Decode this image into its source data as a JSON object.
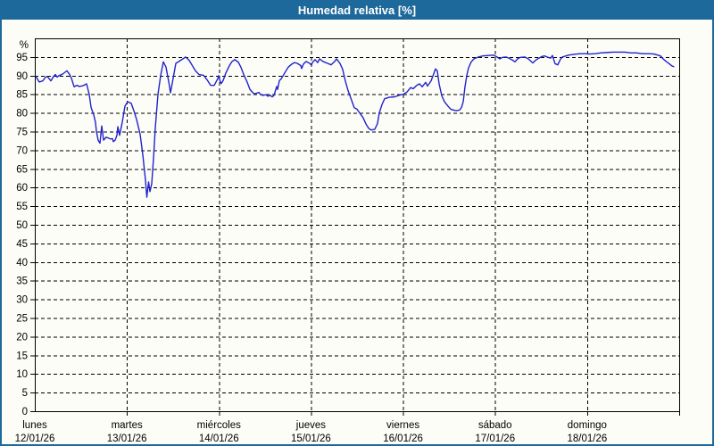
{
  "window": {
    "title": "Humedad relativa [%]"
  },
  "colors": {
    "title_bar_bg": "#1e699b",
    "window_border": "#1e699b",
    "content_bg": "#fcfdf7",
    "line": "#2222cc",
    "grid": "#000000",
    "text": "#000000"
  },
  "chart_data": {
    "type": "line",
    "title": "Humedad relativa [%]",
    "ylabel": "%",
    "ylim": [
      0,
      100
    ],
    "ytick_step": 5,
    "ytick_values": [
      0,
      5,
      10,
      15,
      20,
      25,
      30,
      35,
      40,
      45,
      50,
      55,
      60,
      65,
      70,
      75,
      80,
      85,
      90,
      95
    ],
    "grid": "dashed",
    "legend": "none",
    "x_axis": {
      "unit": "days",
      "range": [
        0,
        7
      ],
      "days": [
        {
          "label": "lunes",
          "date": "12/01/26"
        },
        {
          "label": "martes",
          "date": "13/01/26"
        },
        {
          "label": "miércoles",
          "date": "14/01/26"
        },
        {
          "label": "jueves",
          "date": "15/01/26"
        },
        {
          "label": "viernes",
          "date": "16/01/26"
        },
        {
          "label": "sábado",
          "date": "17/01/26"
        },
        {
          "label": "domingo",
          "date": "18/01/26"
        }
      ]
    },
    "series": [
      {
        "name": "Humedad relativa",
        "color": "#2222cc",
        "points": [
          [
            0.01,
            89.8
          ],
          [
            0.048,
            88.3
          ],
          [
            0.087,
            88.6
          ],
          [
            0.116,
            89.6
          ],
          [
            0.136,
            89.8
          ],
          [
            0.175,
            88.6
          ],
          [
            0.204,
            89.8
          ],
          [
            0.223,
            90.3
          ],
          [
            0.242,
            89.6
          ],
          [
            0.262,
            90.0
          ],
          [
            0.301,
            90.4
          ],
          [
            0.349,
            91.3
          ],
          [
            0.378,
            90.3
          ],
          [
            0.398,
            89.3
          ],
          [
            0.427,
            87.0
          ],
          [
            0.456,
            87.4
          ],
          [
            0.485,
            87.1
          ],
          [
            0.524,
            87.3
          ],
          [
            0.562,
            87.8
          ],
          [
            0.591,
            85.0
          ],
          [
            0.611,
            81.5
          ],
          [
            0.64,
            79.5
          ],
          [
            0.659,
            77.5
          ],
          [
            0.669,
            75.1
          ],
          [
            0.688,
            72.7
          ],
          [
            0.708,
            71.9
          ],
          [
            0.727,
            76.5
          ],
          [
            0.747,
            72.7
          ],
          [
            0.776,
            73.5
          ],
          [
            0.805,
            73.2
          ],
          [
            0.824,
            73.0
          ],
          [
            0.844,
            73.1
          ],
          [
            0.853,
            72.3
          ],
          [
            0.873,
            72.7
          ],
          [
            0.892,
            74.0
          ],
          [
            0.902,
            76.3
          ],
          [
            0.921,
            74.0
          ],
          [
            0.95,
            77.5
          ],
          [
            0.979,
            81.8
          ],
          [
            1.008,
            83.0
          ],
          [
            1.047,
            82.6
          ],
          [
            1.076,
            80.6
          ],
          [
            1.105,
            78.3
          ],
          [
            1.144,
            74.3
          ],
          [
            1.173,
            68.8
          ],
          [
            1.202,
            62.0
          ],
          [
            1.217,
            57.4
          ],
          [
            1.236,
            61.5
          ],
          [
            1.251,
            58.9
          ],
          [
            1.27,
            61.0
          ],
          [
            1.29,
            68.0
          ],
          [
            1.309,
            76.0
          ],
          [
            1.338,
            85.0
          ],
          [
            1.367,
            90.0
          ],
          [
            1.396,
            93.7
          ],
          [
            1.425,
            92.3
          ],
          [
            1.454,
            88.5
          ],
          [
            1.474,
            85.4
          ],
          [
            1.503,
            89.3
          ],
          [
            1.532,
            93.3
          ],
          [
            1.571,
            93.9
          ],
          [
            1.609,
            94.5
          ],
          [
            1.638,
            95.0
          ],
          [
            1.677,
            94.1
          ],
          [
            1.706,
            92.9
          ],
          [
            1.745,
            91.3
          ],
          [
            1.784,
            90.3
          ],
          [
            1.833,
            90.1
          ],
          [
            1.871,
            88.9
          ],
          [
            1.91,
            87.4
          ],
          [
            1.949,
            87.4
          ],
          [
            1.988,
            89.2
          ],
          [
            1.997,
            90.0
          ],
          [
            2.017,
            88.2
          ],
          [
            2.026,
            87.9
          ],
          [
            2.046,
            88.7
          ],
          [
            2.075,
            90.7
          ],
          [
            2.114,
            92.7
          ],
          [
            2.143,
            93.8
          ],
          [
            2.172,
            94.3
          ],
          [
            2.211,
            93.6
          ],
          [
            2.24,
            92.2
          ],
          [
            2.269,
            90.3
          ],
          [
            2.308,
            88.2
          ],
          [
            2.337,
            86.3
          ],
          [
            2.366,
            85.5
          ],
          [
            2.385,
            85.1
          ],
          [
            2.434,
            85.5
          ],
          [
            2.453,
            84.9
          ],
          [
            2.482,
            84.7
          ],
          [
            2.511,
            84.9
          ],
          [
            2.531,
            84.5
          ],
          [
            2.56,
            84.7
          ],
          [
            2.579,
            84.3
          ],
          [
            2.598,
            84.7
          ],
          [
            2.608,
            85.5
          ],
          [
            2.628,
            87.1
          ],
          [
            2.637,
            86.3
          ],
          [
            2.657,
            88.7
          ],
          [
            2.676,
            89.1
          ],
          [
            2.695,
            89.9
          ],
          [
            2.724,
            91.1
          ],
          [
            2.754,
            92.3
          ],
          [
            2.792,
            93.1
          ],
          [
            2.822,
            93.5
          ],
          [
            2.851,
            93.3
          ],
          [
            2.889,
            92.7
          ],
          [
            2.899,
            91.9
          ],
          [
            2.918,
            93.1
          ],
          [
            2.947,
            93.8
          ],
          [
            2.986,
            93.3
          ],
          [
            3.006,
            92.8
          ],
          [
            3.015,
            93.5
          ],
          [
            3.044,
            94.3
          ],
          [
            3.073,
            93.5
          ],
          [
            3.093,
            94.5
          ],
          [
            3.131,
            93.8
          ],
          [
            3.18,
            93.3
          ],
          [
            3.219,
            92.9
          ],
          [
            3.257,
            93.8
          ],
          [
            3.277,
            94.5
          ],
          [
            3.315,
            93.3
          ],
          [
            3.344,
            91.7
          ],
          [
            3.373,
            88.6
          ],
          [
            3.403,
            86.0
          ],
          [
            3.441,
            83.4
          ],
          [
            3.47,
            81.4
          ],
          [
            3.5,
            81.0
          ],
          [
            3.529,
            80.0
          ],
          [
            3.567,
            78.7
          ],
          [
            3.596,
            77.1
          ],
          [
            3.626,
            75.9
          ],
          [
            3.655,
            75.4
          ],
          [
            3.693,
            75.6
          ],
          [
            3.722,
            77.1
          ],
          [
            3.742,
            80.0
          ],
          [
            3.771,
            82.2
          ],
          [
            3.8,
            83.8
          ],
          [
            3.849,
            84.2
          ],
          [
            3.907,
            84.3
          ],
          [
            3.965,
            84.8
          ],
          [
            4.004,
            85.0
          ],
          [
            4.043,
            85.6
          ],
          [
            4.082,
            86.8
          ],
          [
            4.111,
            86.5
          ],
          [
            4.15,
            87.4
          ],
          [
            4.179,
            87.8
          ],
          [
            4.208,
            87.0
          ],
          [
            4.246,
            88.2
          ],
          [
            4.266,
            87.2
          ],
          [
            4.305,
            88.6
          ],
          [
            4.353,
            91.8
          ],
          [
            4.372,
            91.3
          ],
          [
            4.392,
            87.8
          ],
          [
            4.421,
            84.6
          ],
          [
            4.45,
            83.0
          ],
          [
            4.489,
            81.8
          ],
          [
            4.518,
            81.0
          ],
          [
            4.557,
            80.7
          ],
          [
            4.586,
            80.6
          ],
          [
            4.615,
            80.8
          ],
          [
            4.634,
            81.4
          ],
          [
            4.654,
            83.0
          ],
          [
            4.673,
            87.0
          ],
          [
            4.693,
            90.1
          ],
          [
            4.712,
            92.1
          ],
          [
            4.741,
            93.7
          ],
          [
            4.77,
            94.5
          ],
          [
            4.819,
            95.0
          ],
          [
            4.867,
            95.3
          ],
          [
            4.925,
            95.4
          ],
          [
            4.983,
            95.5
          ],
          [
            5.022,
            95.0
          ],
          [
            5.051,
            94.5
          ],
          [
            5.08,
            94.9
          ],
          [
            5.119,
            95.0
          ],
          [
            5.148,
            94.7
          ],
          [
            5.187,
            94.2
          ],
          [
            5.216,
            93.7
          ],
          [
            5.245,
            94.5
          ],
          [
            5.274,
            94.9
          ],
          [
            5.323,
            95.0
          ],
          [
            5.361,
            94.5
          ],
          [
            5.41,
            93.4
          ],
          [
            5.439,
            94.1
          ],
          [
            5.468,
            94.6
          ],
          [
            5.507,
            95.1
          ],
          [
            5.536,
            95.3
          ],
          [
            5.565,
            95.0
          ],
          [
            5.604,
            94.7
          ],
          [
            5.623,
            95.4
          ],
          [
            5.652,
            93.2
          ],
          [
            5.681,
            92.9
          ],
          [
            5.71,
            94.4
          ],
          [
            5.73,
            95.0
          ],
          [
            5.797,
            95.5
          ],
          [
            5.856,
            95.7
          ],
          [
            5.923,
            95.9
          ],
          [
            5.991,
            95.9
          ],
          [
            6.02,
            95.8
          ],
          [
            6.088,
            95.9
          ],
          [
            6.146,
            96.1
          ],
          [
            6.214,
            96.2
          ],
          [
            6.282,
            96.3
          ],
          [
            6.34,
            96.3
          ],
          [
            6.408,
            96.3
          ],
          [
            6.476,
            96.1
          ],
          [
            6.534,
            96.1
          ],
          [
            6.602,
            95.9
          ],
          [
            6.669,
            95.9
          ],
          [
            6.728,
            95.8
          ],
          [
            6.796,
            95.3
          ],
          [
            6.825,
            94.5
          ],
          [
            6.863,
            93.7
          ],
          [
            6.892,
            93.2
          ],
          [
            6.921,
            92.6
          ],
          [
            6.941,
            92.4
          ]
        ]
      }
    ]
  }
}
